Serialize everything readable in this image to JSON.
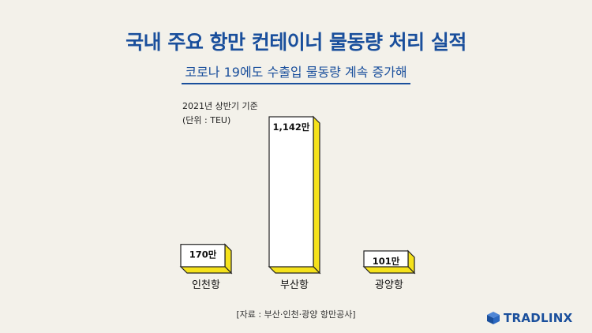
{
  "title": "국내 주요 항만 컨테이너 물동량 처리 실적",
  "subtitle": "코로나 19에도 수출입 물동량 계속 증가해",
  "notes": {
    "period": "2021년 상반기 기준",
    "unit": "(단위 : TEU)"
  },
  "source": "[자료 : 부산·인천·광양 항만공사]",
  "logo": {
    "text": "TRADLINX",
    "icon": "cube-logo-icon"
  },
  "colors": {
    "title": "#1a4f9c",
    "bar_face": "#ffffff",
    "bar_side": "#f5e21b",
    "background": "#f3f1ea"
  },
  "chart_data": {
    "type": "bar",
    "categories": [
      "인천항",
      "부산항",
      "광양항"
    ],
    "values": [
      170,
      1142,
      101
    ],
    "data_labels": [
      "170만",
      "1,142만",
      "101만"
    ],
    "unit": "만 TEU",
    "title": "국내 주요 항만 컨테이너 물동량 처리 실적",
    "xlabel": "",
    "ylabel": "",
    "ylim": [
      0,
      1142
    ],
    "grid": false
  }
}
